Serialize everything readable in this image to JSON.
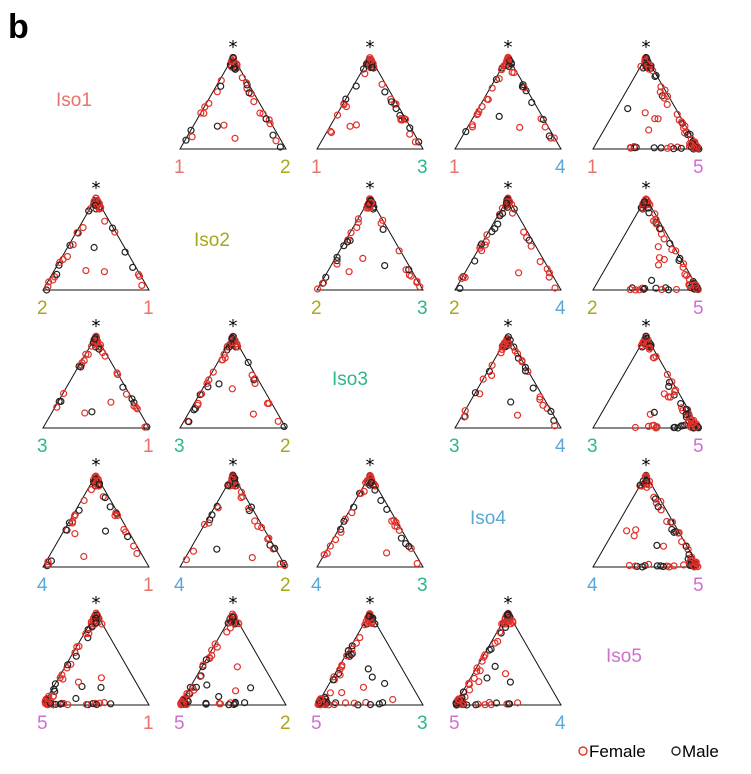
{
  "panel_label": "b",
  "apex_marker": "*",
  "legend": {
    "entries": [
      {
        "label": "Female",
        "color": "#e0302a"
      },
      {
        "label": "Male",
        "color": "#222222"
      }
    ]
  },
  "isoforms": [
    {
      "id": 1,
      "label": "Iso1",
      "number": "1",
      "color": "#e8726c"
    },
    {
      "id": 2,
      "label": "Iso2",
      "number": "2",
      "color": "#aaa61c"
    },
    {
      "id": 3,
      "label": "Iso3",
      "number": "3",
      "color": "#2bb88a"
    },
    {
      "id": 4,
      "label": "Iso4",
      "number": "4",
      "color": "#5aa8d6"
    },
    {
      "id": 5,
      "label": "Iso5",
      "number": "5",
      "color": "#cf6fcf"
    }
  ],
  "chart_data": {
    "type": "scatter",
    "layout": "5x5 matrix of ternary plots; diagonal shows isoform names",
    "grid": false,
    "legend_placement": "bottom-right",
    "series": [
      {
        "name": "Female",
        "color": "#e0302a"
      },
      {
        "name": "Male",
        "color": "#222222"
      }
    ],
    "plots": [
      {
        "row": 1,
        "col": 2,
        "left": "1",
        "right": "2",
        "pattern": "edges"
      },
      {
        "row": 1,
        "col": 3,
        "left": "1",
        "right": "3",
        "pattern": "edges"
      },
      {
        "row": 1,
        "col": 4,
        "left": "1",
        "right": "4",
        "pattern": "edges"
      },
      {
        "row": 1,
        "col": 5,
        "left": "1",
        "right": "5",
        "pattern": "right-heavy"
      },
      {
        "row": 2,
        "col": 1,
        "left": "2",
        "right": "1",
        "pattern": "edges"
      },
      {
        "row": 2,
        "col": 3,
        "left": "2",
        "right": "3",
        "pattern": "edges"
      },
      {
        "row": 2,
        "col": 4,
        "left": "2",
        "right": "4",
        "pattern": "edges"
      },
      {
        "row": 2,
        "col": 5,
        "left": "2",
        "right": "5",
        "pattern": "right-heavy"
      },
      {
        "row": 3,
        "col": 1,
        "left": "3",
        "right": "1",
        "pattern": "edges"
      },
      {
        "row": 3,
        "col": 2,
        "left": "3",
        "right": "2",
        "pattern": "edges"
      },
      {
        "row": 3,
        "col": 4,
        "left": "3",
        "right": "4",
        "pattern": "edges"
      },
      {
        "row": 3,
        "col": 5,
        "left": "3",
        "right": "5",
        "pattern": "right-heavy"
      },
      {
        "row": 4,
        "col": 1,
        "left": "4",
        "right": "1",
        "pattern": "edges"
      },
      {
        "row": 4,
        "col": 2,
        "left": "4",
        "right": "2",
        "pattern": "edges"
      },
      {
        "row": 4,
        "col": 3,
        "left": "4",
        "right": "3",
        "pattern": "edges"
      },
      {
        "row": 4,
        "col": 5,
        "left": "4",
        "right": "5",
        "pattern": "right-heavy"
      },
      {
        "row": 5,
        "col": 1,
        "left": "5",
        "right": "1",
        "pattern": "left-heavy"
      },
      {
        "row": 5,
        "col": 2,
        "left": "5",
        "right": "2",
        "pattern": "left-heavy"
      },
      {
        "row": 5,
        "col": 3,
        "left": "5",
        "right": "3",
        "pattern": "left-heavy"
      },
      {
        "row": 5,
        "col": 4,
        "left": "5",
        "right": "4",
        "pattern": "left-heavy"
      }
    ]
  }
}
